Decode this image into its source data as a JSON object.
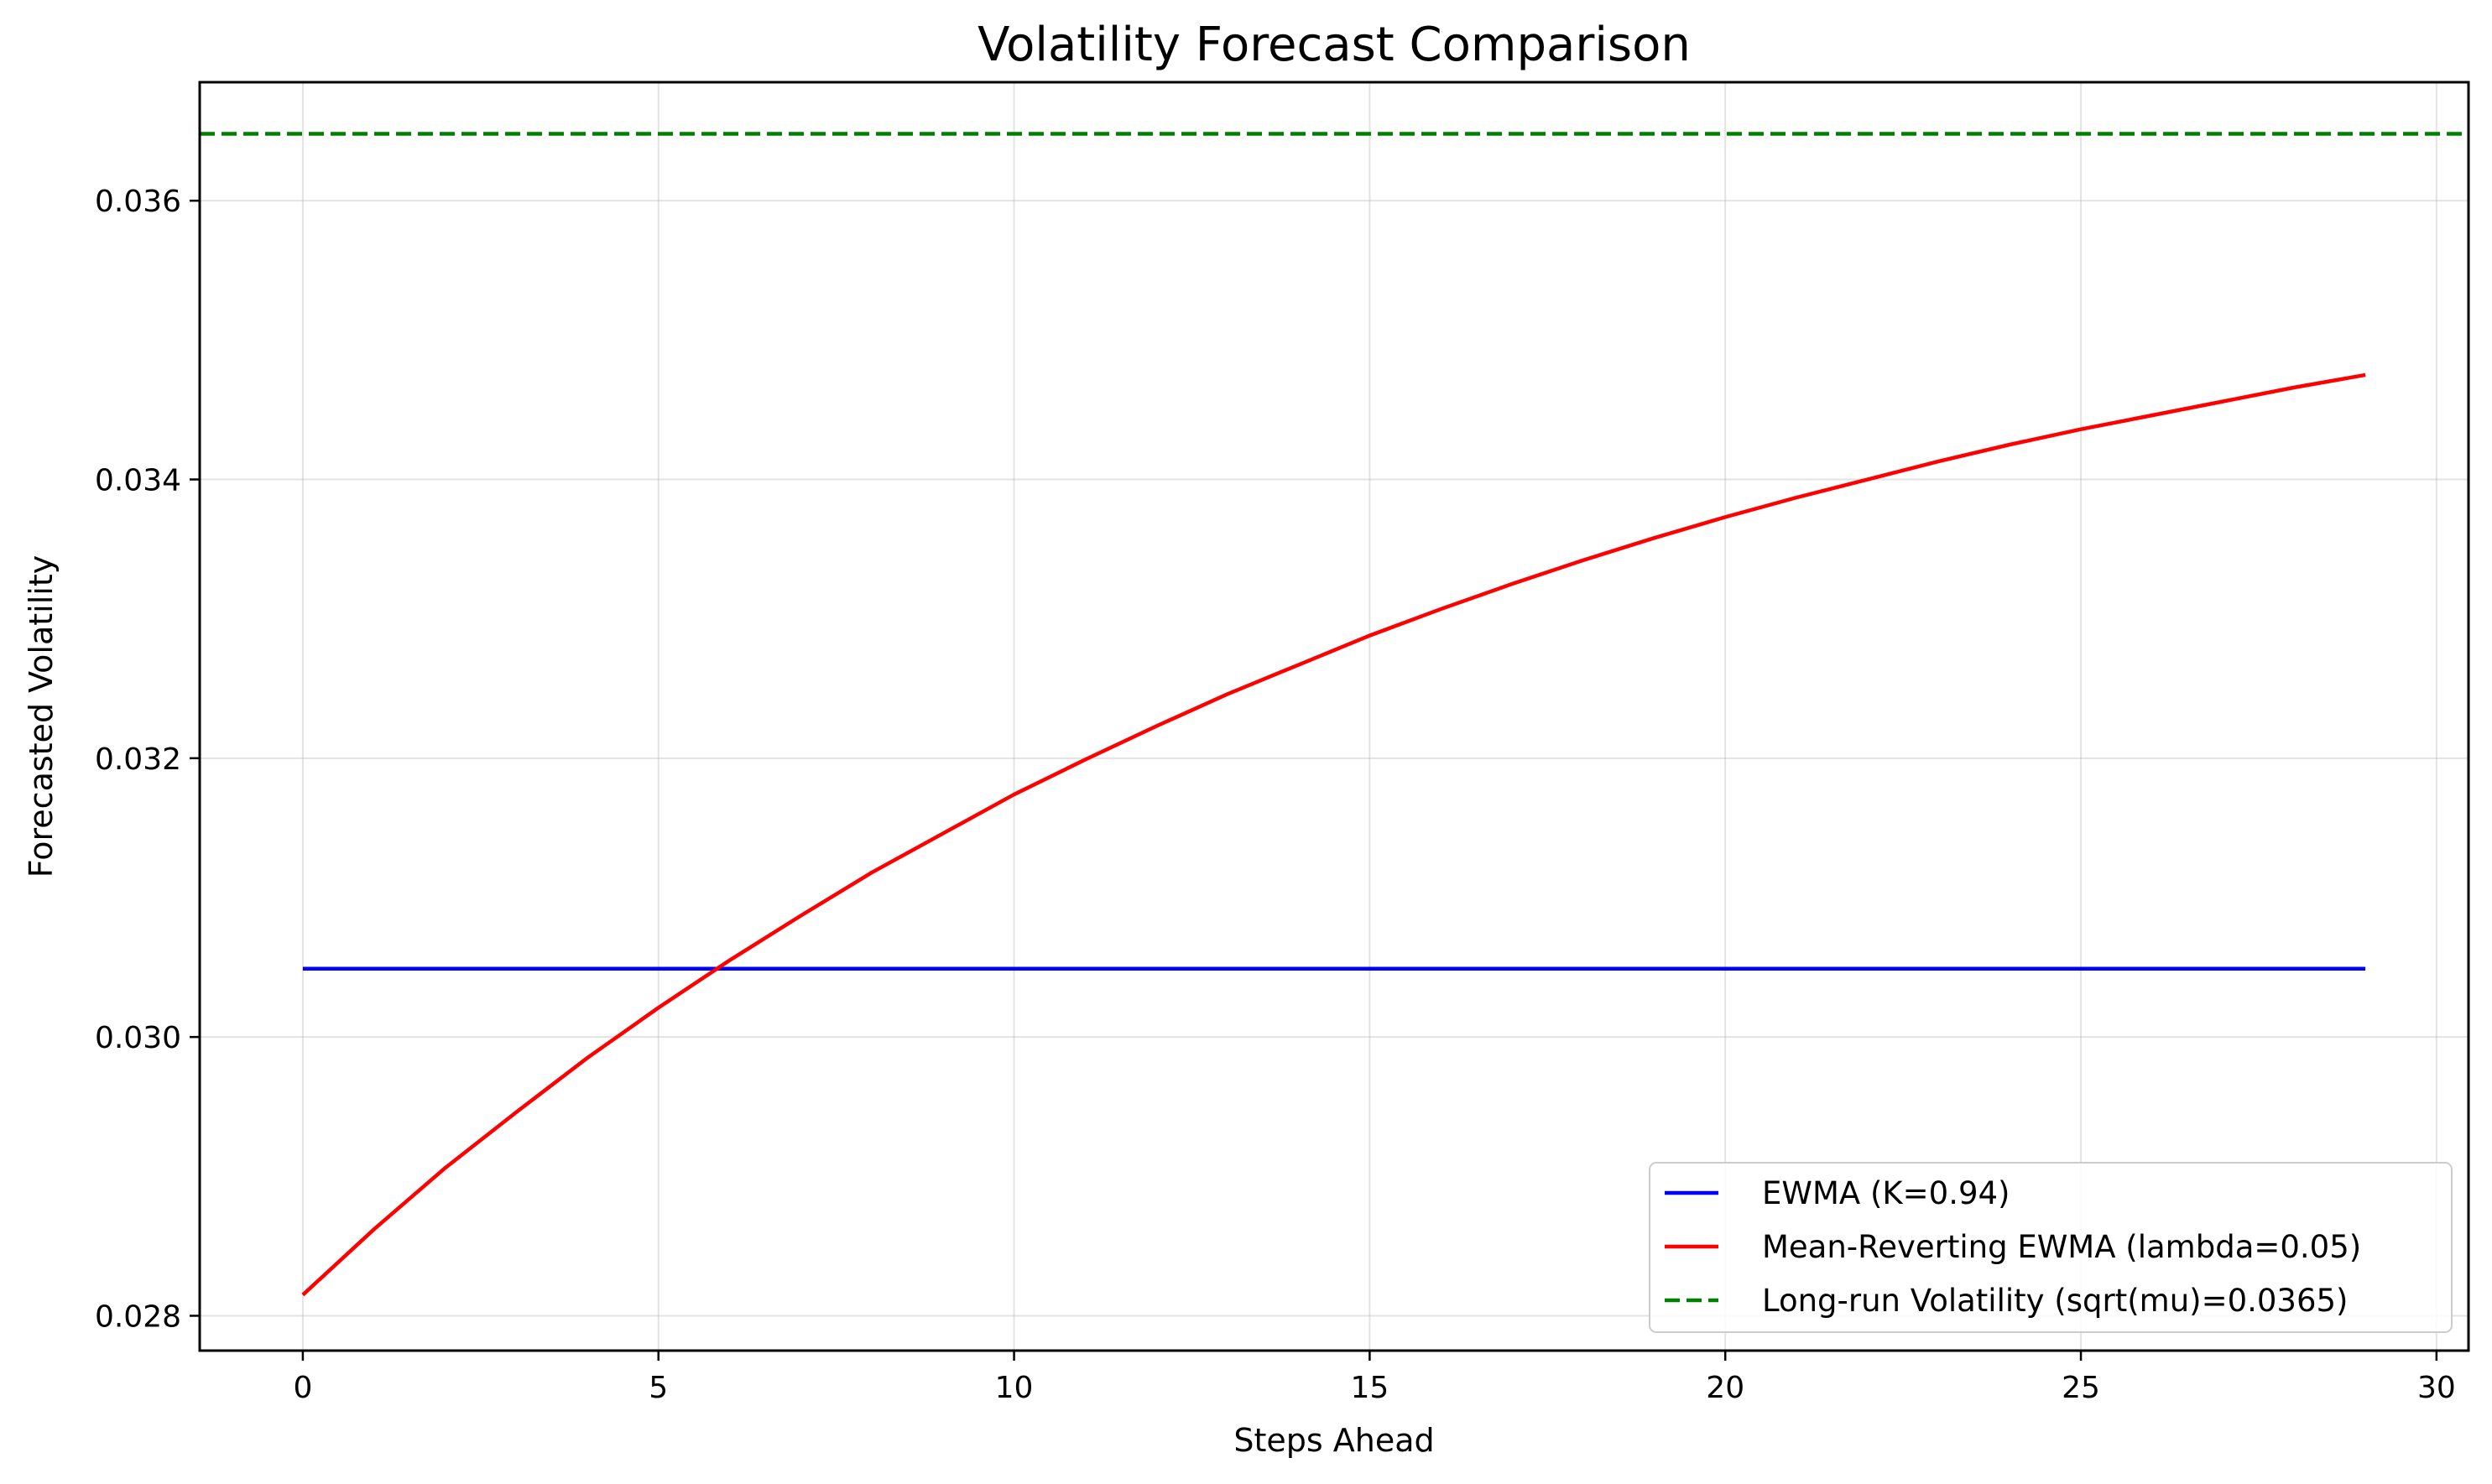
{
  "chart_data": {
    "type": "line",
    "title": "Volatility Forecast Comparison",
    "xlabel": "Steps Ahead",
    "ylabel": "Forecasted Volatility",
    "xlim": [
      -1.45,
      30.45
    ],
    "ylim": [
      0.02775,
      0.03685
    ],
    "xticks": [
      0,
      5,
      10,
      15,
      20,
      25,
      30
    ],
    "yticks": [
      0.028,
      0.03,
      0.032,
      0.034,
      0.036
    ],
    "ytick_format": 3,
    "grid": true,
    "legend_position": "lower-right",
    "x": [
      0,
      1,
      2,
      3,
      4,
      5,
      6,
      7,
      8,
      9,
      10,
      11,
      12,
      13,
      14,
      15,
      16,
      17,
      18,
      19,
      20,
      21,
      22,
      23,
      24,
      25,
      26,
      27,
      28,
      29
    ],
    "series": [
      {
        "name": "EWMA (K=0.94)",
        "color": "#0000ff",
        "style": "solid",
        "values": [
          0.03049,
          0.03049,
          0.03049,
          0.03049,
          0.03049,
          0.03049,
          0.03049,
          0.03049,
          0.03049,
          0.03049,
          0.03049,
          0.03049,
          0.03049,
          0.03049,
          0.03049,
          0.03049,
          0.03049,
          0.03049,
          0.03049,
          0.03049,
          0.03049,
          0.03049,
          0.03049,
          0.03049,
          0.03049,
          0.03049,
          0.03049,
          0.03049,
          0.03049,
          0.03049
        ]
      },
      {
        "name": "Mean-Reverting EWMA (lambda=0.05)",
        "color": "#ff0000",
        "style": "solid",
        "values": [
          0.02815,
          0.02862,
          0.02906,
          0.02946,
          0.02985,
          0.03021,
          0.03055,
          0.03087,
          0.03118,
          0.03146,
          0.03174,
          0.03199,
          0.03223,
          0.03246,
          0.03267,
          0.03288,
          0.03307,
          0.03325,
          0.03342,
          0.03358,
          0.03373,
          0.03387,
          0.034,
          0.03413,
          0.03425,
          0.03436,
          0.03446,
          0.03456,
          0.03466,
          0.03475
        ]
      },
      {
        "name": "Long-run Volatility (sqrt(mu)=0.0365)",
        "color": "#008000",
        "style": "dashed",
        "hline": 0.03648
      }
    ]
  }
}
